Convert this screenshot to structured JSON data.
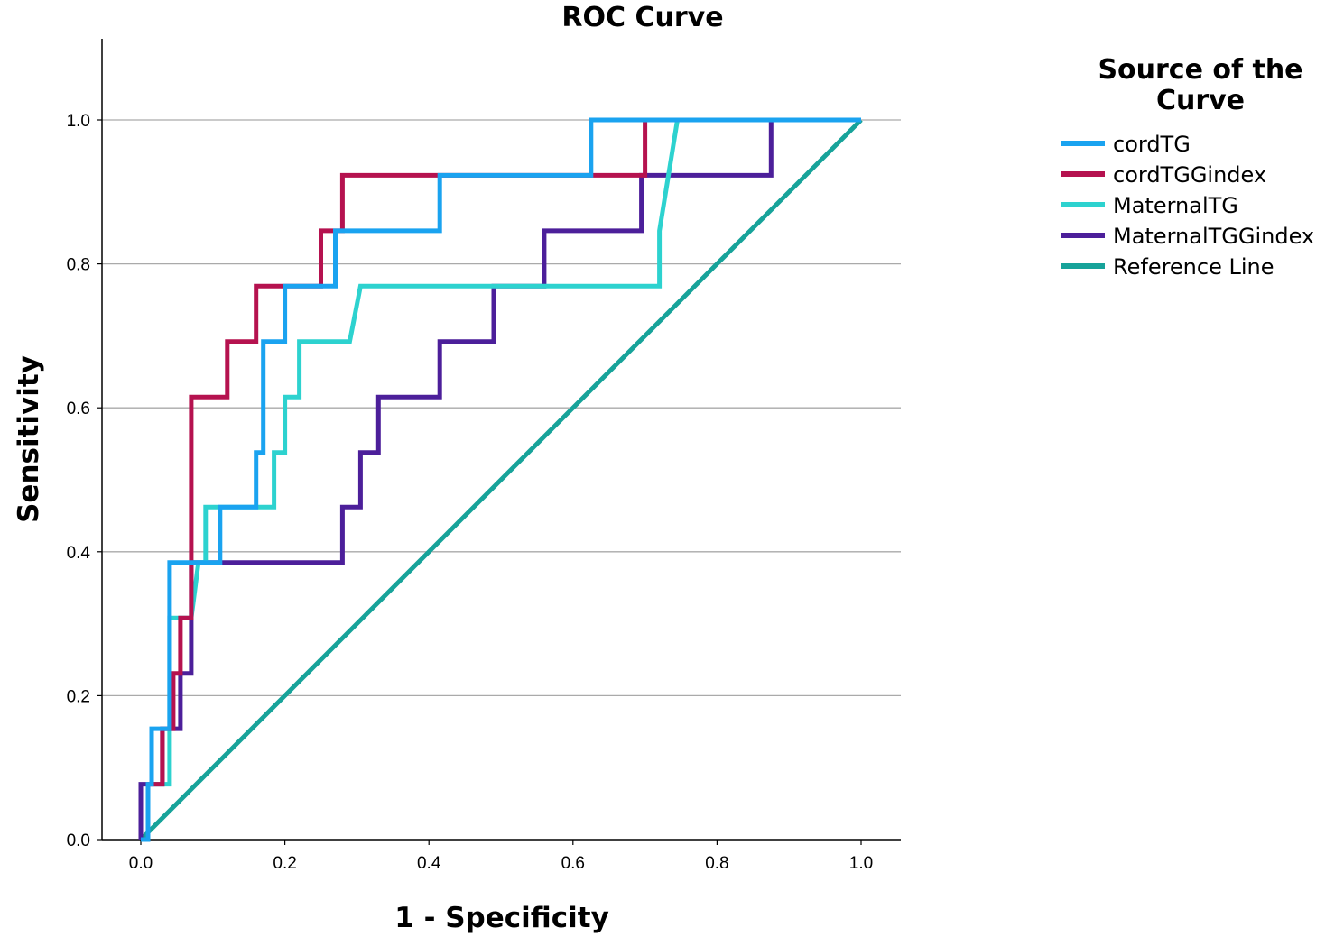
{
  "chart_data": {
    "type": "line",
    "title": "ROC Curve",
    "xlabel": "1 - Specificity",
    "ylabel": "Sensitivity",
    "xlim": [
      0,
      1.05
    ],
    "ylim": [
      0,
      1.1
    ],
    "x_ticks": [
      "0.0",
      "0.2",
      "0.4",
      "0.6",
      "0.8",
      "1.0"
    ],
    "y_ticks": [
      "0.0",
      "0.2",
      "0.4",
      "0.6",
      "0.8",
      "1.0"
    ],
    "grid": "horizontal",
    "legend": {
      "title_lines": [
        "Source of the",
        "Curve"
      ],
      "placement": "right"
    },
    "series": [
      {
        "name": "cordTG",
        "color": "#1aa3f0",
        "points": [
          [
            0,
            0
          ],
          [
            0.01,
            0
          ],
          [
            0.01,
            0.077
          ],
          [
            0.015,
            0.077
          ],
          [
            0.015,
            0.154
          ],
          [
            0.04,
            0.154
          ],
          [
            0.04,
            0.385
          ],
          [
            0.11,
            0.385
          ],
          [
            0.11,
            0.462
          ],
          [
            0.16,
            0.462
          ],
          [
            0.16,
            0.538
          ],
          [
            0.17,
            0.538
          ],
          [
            0.17,
            0.692
          ],
          [
            0.2,
            0.692
          ],
          [
            0.2,
            0.769
          ],
          [
            0.27,
            0.769
          ],
          [
            0.27,
            0.846
          ],
          [
            0.415,
            0.846
          ],
          [
            0.415,
            0.923
          ],
          [
            0.625,
            0.923
          ],
          [
            0.625,
            1.0
          ],
          [
            1.0,
            1.0
          ]
        ]
      },
      {
        "name": "cordTGGindex",
        "color": "#b5124f",
        "points": [
          [
            0,
            0
          ],
          [
            0.01,
            0
          ],
          [
            0.01,
            0.077
          ],
          [
            0.03,
            0.077
          ],
          [
            0.03,
            0.154
          ],
          [
            0.045,
            0.154
          ],
          [
            0.045,
            0.231
          ],
          [
            0.055,
            0.231
          ],
          [
            0.055,
            0.308
          ],
          [
            0.07,
            0.308
          ],
          [
            0.07,
            0.615
          ],
          [
            0.12,
            0.615
          ],
          [
            0.12,
            0.692
          ],
          [
            0.16,
            0.692
          ],
          [
            0.16,
            0.769
          ],
          [
            0.25,
            0.769
          ],
          [
            0.25,
            0.846
          ],
          [
            0.28,
            0.846
          ],
          [
            0.28,
            0.923
          ],
          [
            0.7,
            0.923
          ],
          [
            0.7,
            1.0
          ],
          [
            1.0,
            1.0
          ]
        ]
      },
      {
        "name": "MaternalTG",
        "color": "#2dd2cf",
        "points": [
          [
            0,
            0
          ],
          [
            0.01,
            0
          ],
          [
            0.01,
            0.077
          ],
          [
            0.04,
            0.077
          ],
          [
            0.04,
            0.308
          ],
          [
            0.07,
            0.308
          ],
          [
            0.08,
            0.385
          ],
          [
            0.09,
            0.385
          ],
          [
            0.09,
            0.462
          ],
          [
            0.185,
            0.462
          ],
          [
            0.185,
            0.538
          ],
          [
            0.2,
            0.538
          ],
          [
            0.2,
            0.615
          ],
          [
            0.22,
            0.615
          ],
          [
            0.22,
            0.692
          ],
          [
            0.29,
            0.692
          ],
          [
            0.305,
            0.769
          ],
          [
            0.72,
            0.769
          ],
          [
            0.72,
            0.846
          ],
          [
            0.745,
            1.0
          ],
          [
            1.0,
            1.0
          ]
        ]
      },
      {
        "name": "MaternalTGGindex",
        "color": "#4c1f9a",
        "points": [
          [
            0,
            0
          ],
          [
            0,
            0.077
          ],
          [
            0.03,
            0.077
          ],
          [
            0.03,
            0.154
          ],
          [
            0.055,
            0.154
          ],
          [
            0.055,
            0.231
          ],
          [
            0.07,
            0.231
          ],
          [
            0.07,
            0.385
          ],
          [
            0.28,
            0.385
          ],
          [
            0.28,
            0.462
          ],
          [
            0.305,
            0.462
          ],
          [
            0.305,
            0.538
          ],
          [
            0.33,
            0.538
          ],
          [
            0.33,
            0.615
          ],
          [
            0.415,
            0.615
          ],
          [
            0.415,
            0.692
          ],
          [
            0.49,
            0.692
          ],
          [
            0.49,
            0.769
          ],
          [
            0.56,
            0.769
          ],
          [
            0.56,
            0.846
          ],
          [
            0.695,
            0.846
          ],
          [
            0.695,
            0.923
          ],
          [
            0.875,
            0.923
          ],
          [
            0.875,
            1.0
          ],
          [
            1.0,
            1.0
          ]
        ]
      },
      {
        "name": "Reference Line",
        "color": "#17a39a",
        "points": [
          [
            0,
            0
          ],
          [
            1.0,
            1.0
          ]
        ]
      }
    ]
  }
}
